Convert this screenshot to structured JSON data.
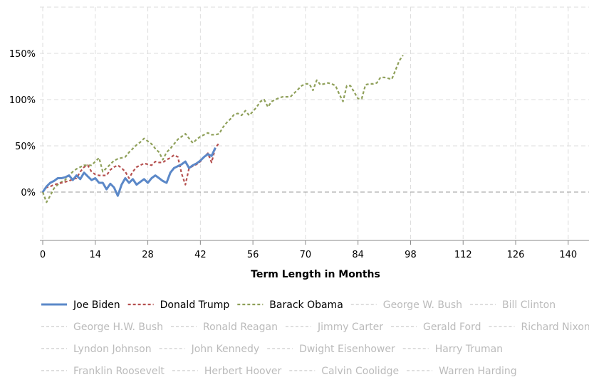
{
  "chart_data": {
    "type": "line",
    "title": "",
    "xlabel": "Term Length in Months",
    "ylabel": "",
    "xlim": [
      0,
      146
    ],
    "ylim": [
      -50,
      200
    ],
    "x_ticks": [
      0,
      14,
      28,
      42,
      56,
      70,
      84,
      98,
      112,
      126,
      140
    ],
    "y_ticks": [
      {
        "v": 0,
        "label": "0%"
      },
      {
        "v": 50,
        "label": "50%"
      },
      {
        "v": 100,
        "label": "100%"
      },
      {
        "v": 150,
        "label": "150%"
      }
    ],
    "grid": true,
    "legend_position": "bottom",
    "series": [
      {
        "name": "Joe Biden",
        "color": "#5b88c8",
        "style": "solid",
        "visible": true,
        "values": [
          0,
          6,
          10,
          12,
          15,
          15,
          16,
          18,
          13,
          18,
          14,
          21,
          17,
          13,
          15,
          10,
          10,
          3,
          9,
          5,
          -4,
          8,
          15,
          10,
          14,
          8,
          11,
          14,
          10,
          15,
          18,
          15,
          12,
          10,
          21,
          26,
          28,
          30,
          33,
          26,
          29,
          31,
          34,
          38,
          41,
          39,
          48
        ]
      },
      {
        "name": "Donald Trump",
        "color": "#b5504f",
        "style": "dashed",
        "visible": true,
        "values": [
          0,
          5,
          6,
          8,
          9,
          10,
          11,
          12,
          14,
          15,
          22,
          27,
          29,
          22,
          19,
          18,
          18,
          18,
          24,
          27,
          29,
          26,
          22,
          15,
          22,
          27,
          29,
          31,
          30,
          29,
          33,
          32,
          32,
          35,
          37,
          40,
          38,
          20,
          8,
          26,
          28,
          30,
          33,
          38,
          42,
          32,
          48,
          53
        ]
      },
      {
        "name": "Barack Obama",
        "color": "#8fa05a",
        "style": "dashed",
        "visible": true,
        "values": [
          0,
          -11,
          -4,
          4,
          8,
          11,
          13,
          18,
          22,
          25,
          27,
          29,
          29,
          29,
          33,
          37,
          22,
          26,
          30,
          34,
          36,
          37,
          38,
          43,
          47,
          51,
          54,
          58,
          55,
          52,
          47,
          43,
          35,
          43,
          47,
          52,
          57,
          60,
          63,
          58,
          53,
          57,
          60,
          62,
          64,
          62,
          62,
          63,
          70,
          75,
          79,
          84,
          85,
          83,
          88,
          83,
          87,
          92,
          98,
          100,
          92,
          98,
          100,
          102,
          103,
          103,
          103,
          107,
          111,
          115,
          117,
          117,
          110,
          121,
          116,
          117,
          118,
          117,
          115,
          106,
          98,
          115,
          115,
          108,
          101,
          101,
          116,
          117,
          117,
          118,
          124,
          124,
          123,
          122,
          132,
          142,
          148
        ]
      },
      {
        "name": "George W. Bush",
        "visible": false
      },
      {
        "name": "Bill Clinton",
        "visible": false
      },
      {
        "name": "George H.W. Bush",
        "visible": false
      },
      {
        "name": "Ronald Reagan",
        "visible": false
      },
      {
        "name": "Jimmy Carter",
        "visible": false
      },
      {
        "name": "Gerald Ford",
        "visible": false
      },
      {
        "name": "Richard Nixon",
        "visible": false
      },
      {
        "name": "Lyndon Johnson",
        "visible": false
      },
      {
        "name": "John Kennedy",
        "visible": false
      },
      {
        "name": "Dwight Eisenhower",
        "visible": false
      },
      {
        "name": "Harry Truman",
        "visible": false
      },
      {
        "name": "Franklin Roosevelt",
        "visible": false
      },
      {
        "name": "Herbert Hoover",
        "visible": false
      },
      {
        "name": "Calvin Coolidge",
        "visible": false
      },
      {
        "name": "Warren Harding",
        "visible": false
      }
    ],
    "legend_rows": [
      [
        0,
        1,
        2,
        3,
        4
      ],
      [
        5,
        6,
        7,
        8,
        9
      ],
      [
        10,
        11,
        12,
        13
      ],
      [
        14,
        15,
        16,
        17
      ]
    ]
  }
}
